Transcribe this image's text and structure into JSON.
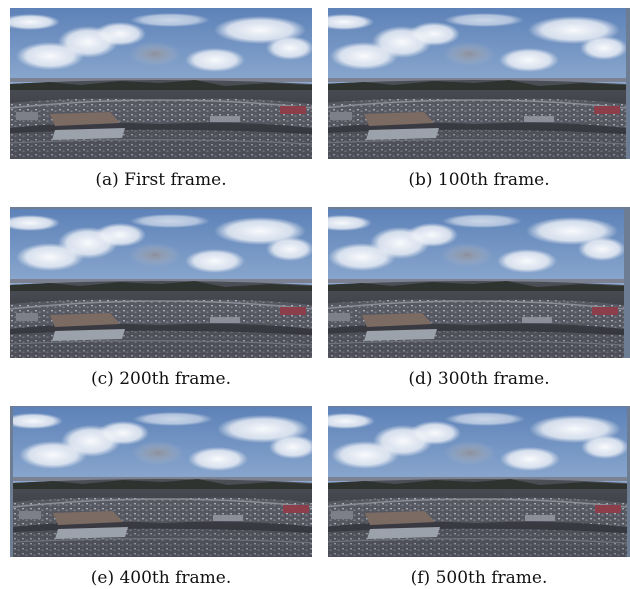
{
  "figure": {
    "panels": [
      {
        "caption": "(a) First frame."
      },
      {
        "caption": "(b) 100th frame."
      },
      {
        "caption": "(c) 200th frame."
      },
      {
        "caption": "(d) 300th frame."
      },
      {
        "caption": "(e) 400th frame."
      },
      {
        "caption": "(f) 500th frame."
      }
    ]
  }
}
